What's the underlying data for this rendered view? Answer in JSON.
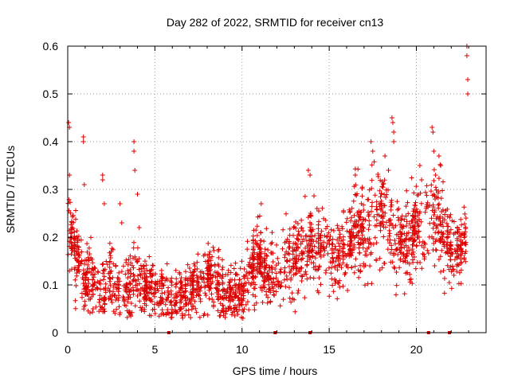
{
  "chart_data": {
    "type": "scatter",
    "title": "Day 282 of 2022, SRMTID for receiver cn13",
    "xlabel": "GPS time / hours",
    "ylabel": "SRMTID / TECUs",
    "xlim": [
      0,
      24
    ],
    "ylim": [
      0,
      0.6
    ],
    "xticks": [
      0,
      5,
      10,
      15,
      20
    ],
    "yticks": [
      0,
      0.1,
      0.2,
      0.3,
      0.4,
      0.5,
      0.6
    ],
    "xtick_labels": [
      "0",
      "5",
      "10",
      "15",
      "20"
    ],
    "ytick_labels": [
      "0",
      "0.1",
      "0.2",
      "0.3",
      "0.4",
      "0.5",
      "0.6"
    ],
    "grid": true,
    "marker": "+",
    "series_color": "#dd0000",
    "data_gap_markers_x": [
      5.8,
      11.9,
      13.9,
      20.7,
      21.9
    ],
    "trend": [
      {
        "x": 0.0,
        "y": 0.22
      },
      {
        "x": 0.5,
        "y": 0.17
      },
      {
        "x": 1.0,
        "y": 0.1
      },
      {
        "x": 1.5,
        "y": 0.1
      },
      {
        "x": 2.0,
        "y": 0.09
      },
      {
        "x": 2.5,
        "y": 0.11
      },
      {
        "x": 3.0,
        "y": 0.09
      },
      {
        "x": 3.5,
        "y": 0.09
      },
      {
        "x": 4.0,
        "y": 0.11
      },
      {
        "x": 4.5,
        "y": 0.09
      },
      {
        "x": 5.0,
        "y": 0.09
      },
      {
        "x": 5.5,
        "y": 0.08
      },
      {
        "x": 6.0,
        "y": 0.06
      },
      {
        "x": 6.5,
        "y": 0.07
      },
      {
        "x": 7.0,
        "y": 0.09
      },
      {
        "x": 7.5,
        "y": 0.1
      },
      {
        "x": 8.0,
        "y": 0.12
      },
      {
        "x": 8.5,
        "y": 0.1
      },
      {
        "x": 9.0,
        "y": 0.07
      },
      {
        "x": 9.5,
        "y": 0.07
      },
      {
        "x": 10.0,
        "y": 0.08
      },
      {
        "x": 10.5,
        "y": 0.13
      },
      {
        "x": 11.0,
        "y": 0.15
      },
      {
        "x": 11.5,
        "y": 0.11
      },
      {
        "x": 12.0,
        "y": 0.12
      },
      {
        "x": 12.5,
        "y": 0.15
      },
      {
        "x": 13.0,
        "y": 0.14
      },
      {
        "x": 13.5,
        "y": 0.16
      },
      {
        "x": 14.0,
        "y": 0.18
      },
      {
        "x": 14.5,
        "y": 0.19
      },
      {
        "x": 15.0,
        "y": 0.17
      },
      {
        "x": 15.5,
        "y": 0.16
      },
      {
        "x": 16.0,
        "y": 0.17
      },
      {
        "x": 16.5,
        "y": 0.2
      },
      {
        "x": 17.0,
        "y": 0.21
      },
      {
        "x": 17.5,
        "y": 0.24
      },
      {
        "x": 18.0,
        "y": 0.25
      },
      {
        "x": 18.5,
        "y": 0.22
      },
      {
        "x": 19.0,
        "y": 0.19
      },
      {
        "x": 19.5,
        "y": 0.18
      },
      {
        "x": 20.0,
        "y": 0.22
      },
      {
        "x": 20.5,
        "y": 0.22
      },
      {
        "x": 21.0,
        "y": 0.25
      },
      {
        "x": 21.5,
        "y": 0.21
      },
      {
        "x": 22.0,
        "y": 0.17
      },
      {
        "x": 22.5,
        "y": 0.16
      },
      {
        "x": 22.8,
        "y": 0.19
      }
    ],
    "spikes": [
      {
        "x": 0.05,
        "y": 0.44
      },
      {
        "x": 0.1,
        "y": 0.43
      },
      {
        "x": 0.1,
        "y": 0.33
      },
      {
        "x": 0.9,
        "y": 0.41
      },
      {
        "x": 0.9,
        "y": 0.4
      },
      {
        "x": 0.95,
        "y": 0.31
      },
      {
        "x": 2.0,
        "y": 0.33
      },
      {
        "x": 2.0,
        "y": 0.32
      },
      {
        "x": 2.1,
        "y": 0.27
      },
      {
        "x": 3.0,
        "y": 0.27
      },
      {
        "x": 3.1,
        "y": 0.23
      },
      {
        "x": 3.8,
        "y": 0.4
      },
      {
        "x": 3.8,
        "y": 0.38
      },
      {
        "x": 3.85,
        "y": 0.34
      },
      {
        "x": 4.1,
        "y": 0.22
      },
      {
        "x": 4.0,
        "y": 0.29
      },
      {
        "x": 11.1,
        "y": 0.27
      },
      {
        "x": 13.8,
        "y": 0.34
      },
      {
        "x": 13.9,
        "y": 0.33
      },
      {
        "x": 14.3,
        "y": 0.26
      },
      {
        "x": 16.5,
        "y": 0.33
      },
      {
        "x": 17.4,
        "y": 0.4
      },
      {
        "x": 17.5,
        "y": 0.38
      },
      {
        "x": 18.2,
        "y": 0.37
      },
      {
        "x": 18.4,
        "y": 0.34
      },
      {
        "x": 18.6,
        "y": 0.45
      },
      {
        "x": 18.65,
        "y": 0.44
      },
      {
        "x": 18.7,
        "y": 0.42
      },
      {
        "x": 18.7,
        "y": 0.4
      },
      {
        "x": 20.2,
        "y": 0.35
      },
      {
        "x": 20.3,
        "y": 0.32
      },
      {
        "x": 20.9,
        "y": 0.43
      },
      {
        "x": 20.95,
        "y": 0.42
      },
      {
        "x": 21.0,
        "y": 0.38
      },
      {
        "x": 21.3,
        "y": 0.37
      },
      {
        "x": 21.4,
        "y": 0.35
      },
      {
        "x": 21.1,
        "y": 0.33
      },
      {
        "x": 22.9,
        "y": 0.6
      },
      {
        "x": 22.9,
        "y": 0.58
      },
      {
        "x": 22.95,
        "y": 0.53
      },
      {
        "x": 22.95,
        "y": 0.5
      },
      {
        "x": 22.85,
        "y": 0.24
      }
    ]
  }
}
